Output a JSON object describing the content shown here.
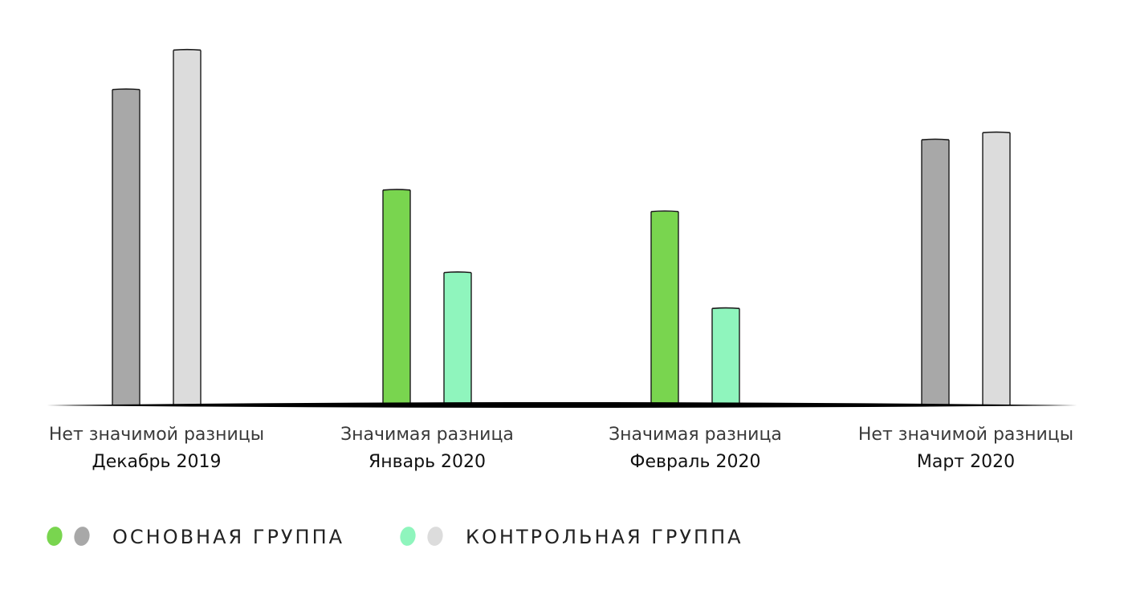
{
  "chart_data": {
    "type": "bar",
    "categories": [
      {
        "status": "Нет значимой разницы",
        "period": "Декабрь 2019",
        "significant": false
      },
      {
        "status": "Значимая разница",
        "period": "Январь 2020",
        "significant": true
      },
      {
        "status": "Значимая разница",
        "period": "Февраль 2020",
        "significant": true
      },
      {
        "status": "Нет значимой разницы",
        "period": "Март 2020",
        "significant": false
      }
    ],
    "series": [
      {
        "name": "ОСНОВНАЯ ГРУППА",
        "values": [
          88,
          60,
          54,
          74
        ]
      },
      {
        "name": "КОНТРОЛЬНАЯ ГРУППА",
        "values": [
          99,
          37,
          27,
          76
        ]
      }
    ],
    "ylim": [
      0,
      100
    ],
    "title": "",
    "xlabel": "",
    "ylabel": "",
    "grid": false,
    "y_axis_visible": false,
    "legend_position": "bottom-left",
    "colors": {
      "main_significant": "#79d54f",
      "main_not_significant": "#a8a8a8",
      "control_significant": "#8ff5bd",
      "control_not_significant": "#dcdcdc",
      "baseline": "#000000"
    }
  },
  "legend": [
    {
      "label": "ОСНОВНАЯ ГРУППА",
      "dots": [
        "#79d54f",
        "#a8a8a8"
      ]
    },
    {
      "label": "КОНТРОЛЬНАЯ ГРУППА",
      "dots": [
        "#8ff5bd",
        "#dcdcdc"
      ]
    }
  ]
}
